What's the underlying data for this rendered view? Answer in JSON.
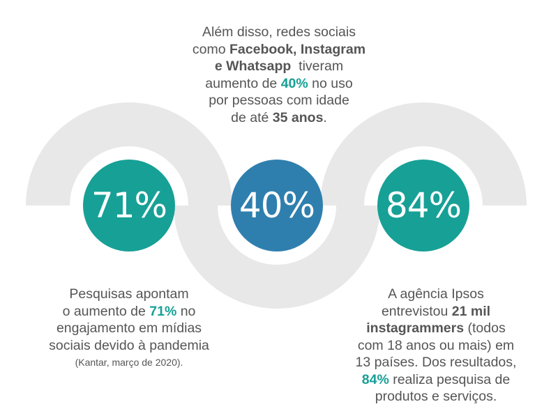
{
  "stats": [
    {
      "value": "71%",
      "color": "#17a096"
    },
    {
      "value": "40%",
      "color": "#2f7fae"
    },
    {
      "value": "84%",
      "color": "#17a096"
    }
  ],
  "top_text": {
    "l1": "Além disso, redes sociais",
    "l2_pre": "como ",
    "l2_bold": "Facebook, Instagram",
    "l3_bold": "e Whatsapp",
    "l3_post": "  tiveram",
    "l4_pre": "aumento de ",
    "l4_hl": "40%",
    "l4_post": " no uso",
    "l5": "por pessoas com idade",
    "l6_pre": "de até ",
    "l6_bold": "35 anos",
    "l6_post": "."
  },
  "left_text": {
    "l1": "Pesquisas apontam",
    "l2_pre": "o aumento de ",
    "l2_hl": "71%",
    "l2_post": " no",
    "l3": "engajamento em mídias",
    "l4": "sociais devido à pandemia",
    "source": "(Kantar, março de 2020)."
  },
  "right_text": {
    "l1": "A agência Ipsos",
    "l2_pre": "entrevistou ",
    "l2_bold": "21 mil",
    "l3_bold": "instagrammers",
    "l3_post": " (todos",
    "l4": "com 18 anos ou mais) em",
    "l5": "13 países. Dos resultados,",
    "l6_hl": "84%",
    "l6_post": " realiza pesquisa de",
    "l7": "produtos e serviços."
  },
  "colors": {
    "teal": "#17a096",
    "blue": "#2f7fae",
    "arc": "#e8e8e8",
    "text": "#555555"
  }
}
